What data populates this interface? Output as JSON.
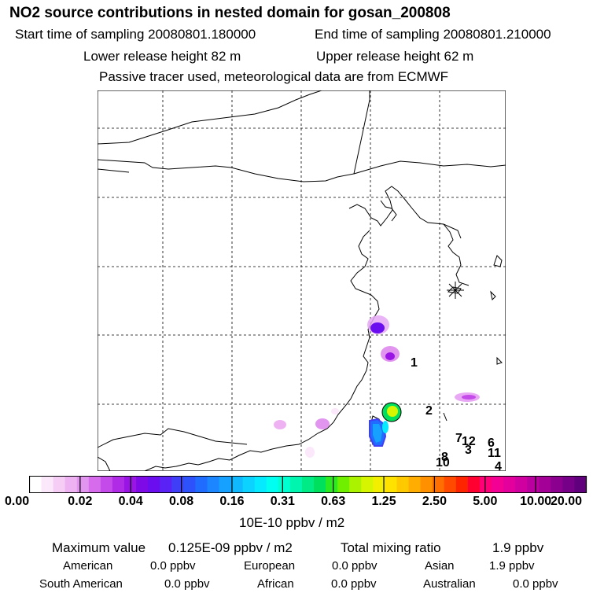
{
  "header": {
    "title": "NO2 source contributions in nested domain for gosan_200808",
    "start_time": "Start time of sampling 20080801.180000",
    "end_time": "End time of sampling 20080801.210000",
    "lower_release": "Lower release height   82 m",
    "upper_release": "Upper release height   62 m",
    "tracer_note": "Passive tracer used, meteorological data are from ECMWF"
  },
  "map": {
    "region_labels": [
      {
        "id": "1",
        "label": "1"
      },
      {
        "id": "2",
        "label": "2"
      },
      {
        "id": "3",
        "label": "3"
      },
      {
        "id": "4",
        "label": "4"
      },
      {
        "id": "6",
        "label": "6"
      },
      {
        "id": "7",
        "label": "7"
      },
      {
        "id": "8",
        "label": "8"
      },
      {
        "id": "10",
        "label": "10"
      },
      {
        "id": "11",
        "label": "11"
      },
      {
        "id": "12",
        "label": "12"
      }
    ],
    "receptor_marker": "asterisk-receptor-gosan"
  },
  "colorbar": {
    "tick_labels": [
      "0.00",
      "0.02",
      "0.04",
      "0.08",
      "0.16",
      "0.31",
      "0.63",
      "1.25",
      "2.50",
      "5.00",
      "10.00",
      "20.00"
    ],
    "unit_label": "10E-10 ppbv / m2",
    "colors": [
      "#ffffff",
      "#fbe8fb",
      "#f5cdf5",
      "#eeb2f3",
      "#e195ef",
      "#d66cec",
      "#c44ae9",
      "#b02be6",
      "#9a14e6",
      "#7f0ae8",
      "#6a0ef0",
      "#5a22f5",
      "#3f3ff8",
      "#2d52fb",
      "#1f6cff",
      "#1b86ff",
      "#16a0ff",
      "#10b9ff",
      "#0bd2ff",
      "#06eaff",
      "#00fff0",
      "#00ffd0",
      "#00f5ae",
      "#00ea86",
      "#00e05c",
      "#2cea20",
      "#70f000",
      "#aaf200",
      "#d6f500",
      "#f2f000",
      "#ffe200",
      "#ffc900",
      "#ffad00",
      "#ff9000",
      "#ff6e00",
      "#ff4a00",
      "#ff2400",
      "#ff0030",
      "#ff0078",
      "#f30094",
      "#e4009c",
      "#d000a0",
      "#ba009e",
      "#a40098",
      "#8c0090",
      "#760088",
      "#60007c"
    ]
  },
  "stats": {
    "max_label": "Maximum value",
    "max_value": "0.125E-09 ppbv / m2",
    "total_label": "Total mixing ratio",
    "total_value": "1.9 ppbv",
    "regions": [
      {
        "name": "American",
        "value": "0.0 ppbv"
      },
      {
        "name": "European",
        "value": "0.0 ppbv"
      },
      {
        "name": "Asian",
        "value": "1.9 ppbv"
      },
      {
        "name": "South American",
        "value": "0.0 ppbv"
      },
      {
        "name": "African",
        "value": "0.0 ppbv"
      },
      {
        "name": "Australian",
        "value": "0.0 ppbv"
      }
    ]
  }
}
